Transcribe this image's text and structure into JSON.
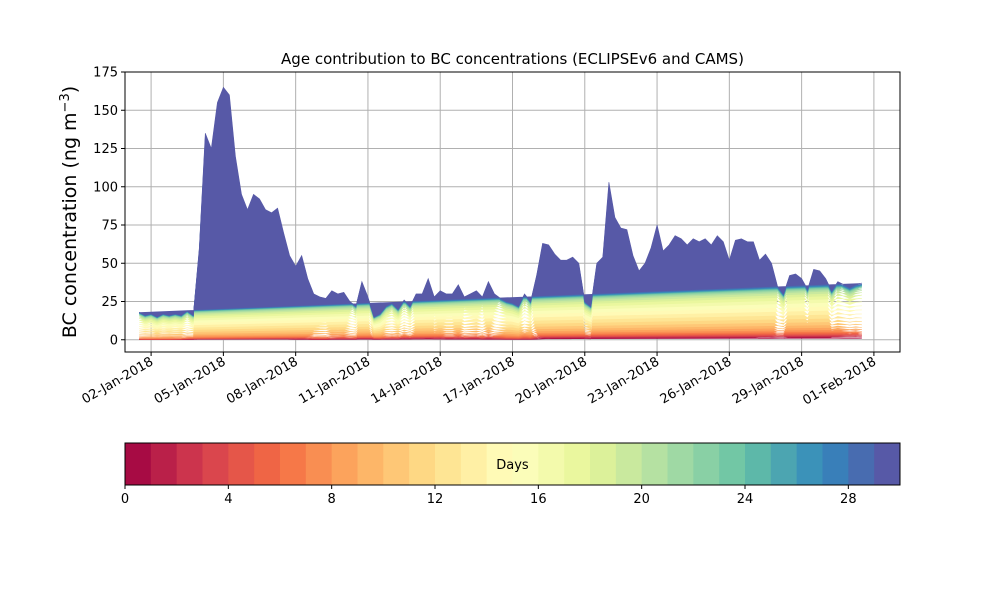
{
  "chart_data": {
    "type": "area",
    "stacked": true,
    "title": "Age contribution to BC concentrations (ECLIPSEv6 and CAMS)",
    "ylabel": "BC concentration (ng m",
    "ylabel_sup": "−3",
    "ylabel_close": ")",
    "ylim": [
      -8,
      175
    ],
    "yticks": [
      0,
      25,
      50,
      75,
      100,
      125,
      150,
      175
    ],
    "xlim": [
      "2017-12-31T22:00",
      "2018-02-02T02:00"
    ],
    "xticks": [
      "2018-01-02",
      "2018-01-05",
      "2018-01-08",
      "2018-01-11",
      "2018-01-14",
      "2018-01-17",
      "2018-01-20",
      "2018-01-23",
      "2018-01-26",
      "2018-01-29",
      "2018-02-01"
    ],
    "xtick_labels": [
      "02-Jan-2018",
      "05-Jan-2018",
      "08-Jan-2018",
      "11-Jan-2018",
      "14-Jan-2018",
      "17-Jan-2018",
      "20-Jan-2018",
      "23-Jan-2018",
      "26-Jan-2018",
      "29-Jan-2018",
      "01-Feb-2018"
    ],
    "grid": true,
    "colormap": "Spectral",
    "age_bins": 30,
    "colorbar": {
      "label": "Days",
      "orientation": "horizontal",
      "range": [
        0,
        30
      ],
      "ticks": [
        0,
        4,
        8,
        12,
        16,
        20,
        24,
        28
      ]
    },
    "x": [
      "2018-01-01T12:00",
      "2018-01-01T18:00",
      "2018-01-02T00:00",
      "2018-01-02T06:00",
      "2018-01-02T12:00",
      "2018-01-02T18:00",
      "2018-01-03T00:00",
      "2018-01-03T06:00",
      "2018-01-03T12:00",
      "2018-01-03T18:00",
      "2018-01-04T00:00",
      "2018-01-04T06:00",
      "2018-01-04T12:00",
      "2018-01-04T18:00",
      "2018-01-05T00:00",
      "2018-01-05T06:00",
      "2018-01-05T12:00",
      "2018-01-05T18:00",
      "2018-01-06T00:00",
      "2018-01-06T06:00",
      "2018-01-06T12:00",
      "2018-01-06T18:00",
      "2018-01-07T00:00",
      "2018-01-07T06:00",
      "2018-01-07T12:00",
      "2018-01-07T18:00",
      "2018-01-08T00:00",
      "2018-01-08T06:00",
      "2018-01-08T12:00",
      "2018-01-08T18:00",
      "2018-01-09T00:00",
      "2018-01-09T06:00",
      "2018-01-09T12:00",
      "2018-01-09T18:00",
      "2018-01-10T00:00",
      "2018-01-10T06:00",
      "2018-01-10T12:00",
      "2018-01-10T18:00",
      "2018-01-11T00:00",
      "2018-01-11T06:00",
      "2018-01-11T12:00",
      "2018-01-11T18:00",
      "2018-01-12T00:00",
      "2018-01-12T06:00",
      "2018-01-12T12:00",
      "2018-01-12T18:00",
      "2018-01-13T00:00",
      "2018-01-13T06:00",
      "2018-01-13T12:00",
      "2018-01-13T18:00",
      "2018-01-14T00:00",
      "2018-01-14T06:00",
      "2018-01-14T12:00",
      "2018-01-14T18:00",
      "2018-01-15T00:00",
      "2018-01-15T06:00",
      "2018-01-15T12:00",
      "2018-01-15T18:00",
      "2018-01-16T00:00",
      "2018-01-16T06:00",
      "2018-01-16T12:00",
      "2018-01-16T18:00",
      "2018-01-17T00:00",
      "2018-01-17T06:00",
      "2018-01-17T12:00",
      "2018-01-17T18:00",
      "2018-01-18T00:00",
      "2018-01-18T06:00",
      "2018-01-18T12:00",
      "2018-01-18T18:00",
      "2018-01-19T00:00",
      "2018-01-19T06:00",
      "2018-01-19T12:00",
      "2018-01-19T18:00",
      "2018-01-20T00:00",
      "2018-01-20T06:00",
      "2018-01-20T12:00",
      "2018-01-20T18:00",
      "2018-01-21T00:00",
      "2018-01-21T06:00",
      "2018-01-21T12:00",
      "2018-01-21T18:00",
      "2018-01-22T00:00",
      "2018-01-22T06:00",
      "2018-01-22T12:00",
      "2018-01-22T18:00",
      "2018-01-23T00:00",
      "2018-01-23T06:00",
      "2018-01-23T12:00",
      "2018-01-23T18:00",
      "2018-01-24T00:00",
      "2018-01-24T06:00",
      "2018-01-24T12:00",
      "2018-01-24T18:00",
      "2018-01-25T00:00",
      "2018-01-25T06:00",
      "2018-01-25T12:00",
      "2018-01-25T18:00",
      "2018-01-26T00:00",
      "2018-01-26T06:00",
      "2018-01-26T12:00",
      "2018-01-26T18:00",
      "2018-01-27T00:00",
      "2018-01-27T06:00",
      "2018-01-27T12:00",
      "2018-01-27T18:00",
      "2018-01-28T00:00",
      "2018-01-28T06:00",
      "2018-01-28T12:00",
      "2018-01-28T18:00",
      "2018-01-29T00:00",
      "2018-01-29T06:00",
      "2018-01-29T12:00",
      "2018-01-29T18:00",
      "2018-01-30T00:00",
      "2018-01-30T06:00",
      "2018-01-30T12:00",
      "2018-01-30T18:00",
      "2018-01-31T00:00",
      "2018-01-31T06:00",
      "2018-01-31T12:00",
      "2018-01-31T18:00",
      "2018-02-01T00:00"
    ],
    "total": [
      18,
      16,
      17,
      15,
      17,
      16,
      17,
      16,
      19,
      16,
      60,
      135,
      125,
      155,
      165,
      160,
      120,
      95,
      85,
      95,
      92,
      85,
      83,
      86,
      70,
      55,
      48,
      55,
      40,
      30,
      28,
      27,
      32,
      30,
      31,
      25,
      22,
      38,
      28,
      15,
      17,
      22,
      24,
      20,
      26,
      22,
      30,
      30,
      40,
      28,
      32,
      30,
      30,
      36,
      28,
      30,
      32,
      28,
      38,
      30,
      27,
      25,
      24,
      22,
      30,
      25,
      42,
      63,
      62,
      56,
      52,
      52,
      54,
      50,
      25,
      22,
      50,
      54,
      103,
      80,
      73,
      72,
      55,
      45,
      50,
      60,
      75,
      58,
      62,
      68,
      66,
      62,
      66,
      64,
      66,
      62,
      68,
      64,
      52,
      65,
      66,
      64,
      64,
      52,
      56,
      50,
      35,
      30,
      42,
      43,
      40,
      33,
      46,
      45,
      40,
      32,
      38,
      36,
      34,
      36,
      37
    ],
    "young_fraction": [
      0.02,
      0.02,
      0.02,
      0.02,
      0.02,
      0.02,
      0.03,
      0.05,
      0.08,
      0.15,
      0.25,
      0.3,
      0.3,
      0.3,
      0.3,
      0.3,
      0.28,
      0.22,
      0.18,
      0.15,
      0.12,
      0.1,
      0.1,
      0.1,
      0.08,
      0.06,
      0.05,
      0.05,
      0.05,
      0.05,
      0.05,
      0.05,
      0.08,
      0.1,
      0.1,
      0.12,
      0.12,
      0.25,
      0.25,
      0.2,
      0.15,
      0.15,
      0.15,
      0.18,
      0.2,
      0.2,
      0.2,
      0.2,
      0.2,
      0.2,
      0.18,
      0.15,
      0.15,
      0.15,
      0.15,
      0.15,
      0.15,
      0.12,
      0.12,
      0.12,
      0.12,
      0.1,
      0.1,
      0.1,
      0.1,
      0.1,
      0.1,
      0.12,
      0.15,
      0.2,
      0.2,
      0.22,
      0.3,
      0.35,
      0.3,
      0.3,
      0.45,
      0.55,
      0.75,
      0.8,
      0.8,
      0.8,
      0.8,
      0.65,
      0.6,
      0.5,
      0.45,
      0.4,
      0.5,
      0.55,
      0.6,
      0.6,
      0.55,
      0.5,
      0.55,
      0.5,
      0.45,
      0.4,
      0.4,
      0.4,
      0.4,
      0.3,
      0.25,
      0.2,
      0.2,
      0.2,
      0.25,
      0.3,
      0.35,
      0.4,
      0.4,
      0.4,
      0.45,
      0.5,
      0.45,
      0.35,
      0.3,
      0.3,
      0.3,
      0.3,
      0.25
    ]
  }
}
